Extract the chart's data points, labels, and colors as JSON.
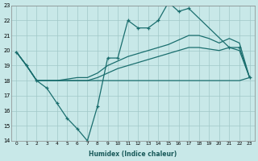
{
  "bg_color": "#c8e8e8",
  "grid_color": "#a0c8c8",
  "line_color": "#1a6e6e",
  "xlabel": "Humidex (Indice chaleur)",
  "ylim": [
    14,
    23
  ],
  "xlim": [
    -0.5,
    23.5
  ],
  "yticks": [
    14,
    15,
    16,
    17,
    18,
    19,
    20,
    21,
    22,
    23
  ],
  "xticks": [
    0,
    1,
    2,
    3,
    4,
    5,
    6,
    7,
    8,
    9,
    10,
    11,
    12,
    13,
    14,
    15,
    16,
    17,
    18,
    19,
    20,
    21,
    22,
    23
  ],
  "spiky_x": [
    0,
    1,
    2,
    3,
    4,
    5,
    6,
    7,
    8,
    9,
    10,
    11,
    12,
    13,
    14,
    15,
    16,
    17,
    21,
    22,
    23
  ],
  "spiky_y": [
    19.9,
    19.0,
    18.0,
    17.5,
    16.5,
    15.5,
    14.8,
    14.0,
    16.3,
    19.5,
    19.5,
    22.0,
    21.5,
    21.5,
    22.0,
    23.2,
    22.6,
    22.8,
    20.2,
    20.2,
    18.2
  ],
  "upper_x": [
    0,
    1,
    2,
    3,
    4,
    5,
    6,
    7,
    8,
    9,
    10,
    11,
    12,
    13,
    14,
    15,
    16,
    17,
    18,
    19,
    20,
    21,
    22,
    23
  ],
  "upper_y": [
    19.9,
    19.0,
    18.0,
    18.0,
    18.0,
    18.1,
    18.2,
    18.2,
    18.5,
    19.0,
    19.3,
    19.6,
    19.8,
    20.0,
    20.2,
    20.4,
    20.7,
    21.0,
    21.0,
    20.8,
    20.5,
    20.8,
    20.5,
    18.2
  ],
  "mid_x": [
    0,
    1,
    2,
    3,
    4,
    5,
    6,
    7,
    8,
    9,
    10,
    11,
    12,
    13,
    14,
    15,
    16,
    17,
    18,
    19,
    20,
    21,
    22,
    23
  ],
  "mid_y": [
    19.9,
    19.0,
    18.0,
    18.0,
    18.0,
    18.0,
    18.0,
    18.0,
    18.2,
    18.5,
    18.8,
    19.0,
    19.2,
    19.4,
    19.6,
    19.8,
    20.0,
    20.2,
    20.2,
    20.1,
    20.0,
    20.2,
    20.0,
    18.2
  ],
  "lower_x": [
    0,
    1,
    2,
    3,
    4,
    5,
    6,
    7,
    8,
    9,
    10,
    11,
    12,
    13,
    14,
    15,
    16,
    17,
    18,
    19,
    20,
    21,
    22,
    23
  ],
  "lower_y": [
    19.9,
    19.0,
    18.0,
    18.0,
    18.0,
    18.0,
    18.0,
    18.0,
    18.0,
    18.0,
    18.0,
    18.0,
    18.0,
    18.0,
    18.0,
    18.0,
    18.0,
    18.0,
    18.0,
    18.0,
    18.0,
    18.0,
    18.0,
    18.2
  ]
}
